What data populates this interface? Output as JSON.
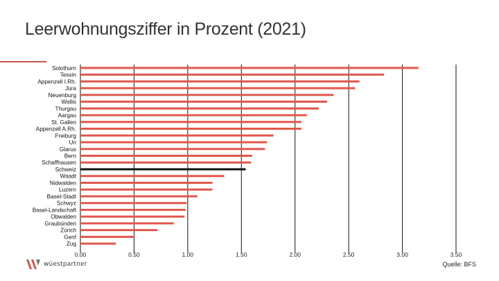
{
  "title": "Leerwohnungsziffer in Prozent (2021)",
  "source": "Quelle: BFS",
  "logo": {
    "text": "wüestpartner",
    "brand_color": "#c9534a"
  },
  "colors": {
    "bar": "#e0574c",
    "highlight": "#111111",
    "gridline": "#111111",
    "accent": "#c9534a"
  },
  "chart_data": {
    "type": "bar",
    "orientation": "horizontal",
    "title": "Leerwohnungsziffer in Prozent (2021)",
    "xlabel": "",
    "ylabel": "",
    "xlim": [
      0,
      3.5
    ],
    "xticks": [
      0,
      0.5,
      1,
      1.5,
      2,
      2.5,
      3,
      3.5
    ],
    "xtick_labels": [
      "0.00",
      "0.50",
      "1.00",
      "1.50",
      "2.00",
      "2.50",
      "3.00",
      "3.50"
    ],
    "grid": "vertical",
    "highlight_category": "Schweiz",
    "categories": [
      "Solothurn",
      "Tessin",
      "Appenzell I.Rh.",
      "Jura",
      "Neuenburg",
      "Wallis",
      "Thurgau",
      "Aargau",
      "St. Gallen",
      "Appenzell A.Rh.",
      "Freiburg",
      "Uri",
      "Glarus",
      "Bern",
      "Schaffhausen",
      "Schweiz",
      "Waadt",
      "Nidwalden",
      "Luzern",
      "Basel-Stadt",
      "Schwyz",
      "Basel-Landschaft",
      "Obwalden",
      "Graubünden",
      "Zürich",
      "Genf",
      "Zug"
    ],
    "values": [
      3.15,
      2.83,
      2.6,
      2.56,
      2.36,
      2.3,
      2.22,
      2.11,
      2.06,
      2.06,
      1.8,
      1.74,
      1.72,
      1.6,
      1.59,
      1.54,
      1.34,
      1.23,
      1.23,
      1.09,
      0.99,
      0.98,
      0.97,
      0.87,
      0.72,
      0.5,
      0.33
    ]
  }
}
